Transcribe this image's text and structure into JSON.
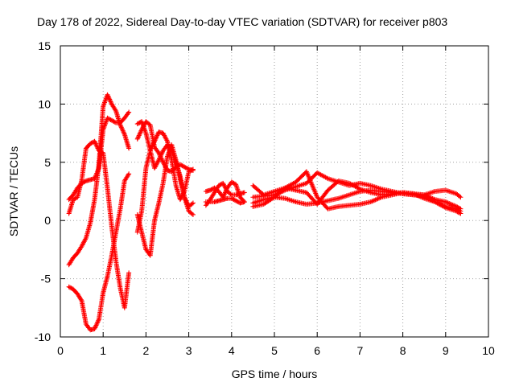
{
  "chart_data": {
    "type": "scatter",
    "title": "Day 178 of 2022, Sidereal Day-to-day VTEC variation (SDTVAR) for receiver p803",
    "xlabel": "GPS time / hours",
    "ylabel": "SDTVAR / TECUs",
    "xlim": [
      0,
      10
    ],
    "ylim": [
      -10,
      15
    ],
    "x_ticks": [
      0,
      1,
      2,
      3,
      4,
      5,
      6,
      7,
      8,
      9,
      10
    ],
    "y_ticks": [
      -10,
      -5,
      0,
      5,
      10,
      15
    ],
    "x_tick_labels": [
      "0",
      "1",
      "2",
      "3",
      "4",
      "5",
      "6",
      "7",
      "8",
      "9",
      "10"
    ],
    "y_tick_labels": [
      "-10",
      "-5",
      "0",
      "5",
      "10",
      "15"
    ],
    "grid": true,
    "marker": "+",
    "color": "#ff0000",
    "series": [
      {
        "name": "s1",
        "x": [
          0.2,
          0.3,
          0.4,
          0.5,
          0.6,
          0.7,
          0.8,
          0.9,
          1.0,
          1.1,
          1.2,
          1.3,
          1.4,
          1.5,
          1.6
        ],
        "y": [
          1.8,
          2.2,
          2.8,
          3.2,
          3.4,
          3.5,
          3.6,
          4.5,
          7.8,
          8.8,
          8.6,
          8.4,
          8.4,
          8.8,
          9.3
        ]
      },
      {
        "name": "s2",
        "x": [
          0.2,
          0.3,
          0.4,
          0.5,
          0.6,
          0.7,
          0.8,
          0.9,
          1.0,
          1.1,
          1.2,
          1.3,
          1.4,
          1.5,
          1.6
        ],
        "y": [
          -3.8,
          -3.2,
          -2.8,
          -2.2,
          -1.5,
          -0.2,
          1.8,
          4.8,
          9.8,
          10.8,
          10.0,
          9.4,
          8.2,
          7.4,
          6.2
        ]
      },
      {
        "name": "s3",
        "x": [
          0.2,
          0.3,
          0.4,
          0.5,
          0.6,
          0.7,
          0.8,
          0.9,
          1.0,
          1.1,
          1.2,
          1.3,
          1.4,
          1.5,
          1.6
        ],
        "y": [
          -5.7,
          -5.9,
          -6.3,
          -6.9,
          -8.9,
          -9.4,
          -9.3,
          -8.5,
          -6.2,
          -4.8,
          -3.0,
          -1.0,
          1.0,
          3.4,
          4.0
        ]
      },
      {
        "name": "s4",
        "x": [
          0.2,
          0.3,
          0.4,
          0.5,
          0.6,
          0.7,
          0.8,
          0.9,
          1.0,
          1.1,
          1.2,
          1.3,
          1.4,
          1.5,
          1.6
        ],
        "y": [
          0.6,
          1.8,
          2.0,
          3.5,
          6.2,
          6.6,
          6.8,
          6.0,
          5.8,
          2.8,
          -0.5,
          -3.5,
          -5.8,
          -7.5,
          -4.5
        ]
      },
      {
        "name": "s5",
        "x": [
          1.8,
          1.9,
          2.0,
          2.1,
          2.2,
          2.3,
          2.4,
          2.5,
          2.6,
          2.7,
          2.8,
          2.9,
          3.0,
          3.1
        ],
        "y": [
          -1.0,
          0.8,
          4.5,
          6.0,
          6.8,
          7.6,
          7.5,
          6.8,
          5.2,
          3.0,
          1.8,
          2.5,
          4.2,
          4.4
        ]
      },
      {
        "name": "s6",
        "x": [
          1.8,
          1.9,
          2.0,
          2.1,
          2.2,
          2.3,
          2.4,
          2.5,
          2.6,
          2.7,
          2.8,
          2.9,
          3.0,
          3.1
        ],
        "y": [
          7.0,
          7.8,
          8.5,
          8.2,
          6.3,
          5.8,
          5.0,
          4.3,
          4.2,
          4.6,
          4.8,
          4.6,
          4.4,
          4.3
        ]
      },
      {
        "name": "s7",
        "x": [
          1.8,
          1.9,
          2.0,
          2.1,
          2.2,
          2.3,
          2.4,
          2.5,
          2.6,
          2.7,
          2.8,
          2.9,
          3.0,
          3.1
        ],
        "y": [
          8.3,
          8.5,
          7.5,
          6.0,
          4.5,
          5.2,
          6.0,
          6.5,
          6.0,
          5.0,
          3.8,
          2.0,
          1.2,
          1.5
        ]
      },
      {
        "name": "s8",
        "x": [
          1.8,
          1.9,
          2.0,
          2.1,
          2.2,
          2.3,
          2.4,
          2.5,
          2.6,
          2.7,
          2.8,
          2.9,
          3.0,
          3.1
        ],
        "y": [
          0.5,
          -1.0,
          -2.5,
          -3.0,
          0.0,
          1.5,
          3.2,
          5.5,
          6.5,
          5.2,
          3.5,
          2.0,
          0.8,
          0.5
        ]
      },
      {
        "name": "s9",
        "x": [
          3.4,
          3.5,
          3.6,
          3.7,
          3.8,
          3.9,
          4.0,
          4.1,
          4.2,
          4.3
        ],
        "y": [
          2.5,
          2.6,
          2.8,
          2.5,
          2.0,
          2.8,
          3.3,
          3.1,
          2.0,
          1.6
        ]
      },
      {
        "name": "s10",
        "x": [
          3.4,
          3.5,
          3.6,
          3.7,
          3.8,
          3.9,
          4.0,
          4.1,
          4.2,
          4.3
        ],
        "y": [
          1.6,
          1.6,
          1.6,
          1.7,
          1.8,
          1.9,
          1.9,
          1.7,
          1.5,
          1.6
        ]
      },
      {
        "name": "s11",
        "x": [
          3.4,
          3.5,
          3.6,
          3.7,
          3.8,
          3.9,
          4.0,
          4.1,
          4.2,
          4.3
        ],
        "y": [
          1.3,
          1.8,
          2.4,
          3.0,
          3.2,
          2.5,
          2.2,
          2.2,
          2.3,
          2.4
        ]
      },
      {
        "name": "s12",
        "x": [
          4.5,
          4.75,
          5.0,
          5.25,
          5.5,
          5.75,
          6.0,
          6.25,
          6.5,
          6.75,
          7.0,
          7.25,
          7.5,
          7.75,
          8.0,
          8.25,
          8.5,
          8.75,
          9.0,
          9.25,
          9.35
        ],
        "y": [
          3.0,
          2.2,
          2.5,
          2.8,
          2.6,
          2.4,
          1.4,
          2.6,
          3.4,
          3.2,
          2.7,
          2.4,
          2.2,
          2.3,
          2.4,
          2.3,
          2.2,
          1.8,
          1.6,
          1.2,
          1.0
        ]
      },
      {
        "name": "s13",
        "x": [
          4.5,
          4.75,
          5.0,
          5.25,
          5.5,
          5.75,
          6.0,
          6.25,
          6.5,
          6.75,
          7.0,
          7.25,
          7.5,
          7.75,
          8.0,
          8.25,
          8.5,
          8.75,
          9.0,
          9.25,
          9.35
        ],
        "y": [
          1.5,
          1.8,
          2.0,
          1.9,
          1.6,
          1.4,
          1.5,
          1.7,
          1.9,
          2.2,
          2.5,
          2.6,
          2.5,
          2.4,
          2.3,
          2.2,
          2.1,
          1.6,
          1.1,
          0.8,
          0.6
        ]
      },
      {
        "name": "s14",
        "x": [
          4.5,
          4.75,
          5.0,
          5.25,
          5.5,
          5.75,
          6.0,
          6.25,
          6.5,
          6.75,
          7.0,
          7.25,
          7.5,
          7.75,
          8.0,
          8.25,
          8.5,
          8.75,
          9.0,
          9.25,
          9.35
        ],
        "y": [
          2.0,
          2.1,
          2.2,
          2.6,
          2.9,
          3.2,
          4.1,
          3.6,
          3.3,
          3.0,
          3.2,
          3.0,
          2.7,
          2.5,
          2.3,
          2.2,
          2.2,
          2.5,
          2.6,
          2.3,
          2.0
        ]
      },
      {
        "name": "s15",
        "x": [
          4.5,
          4.75,
          5.0,
          5.25,
          5.5,
          5.75,
          6.0,
          6.25,
          6.5,
          6.75,
          7.0,
          7.25,
          7.5,
          7.75,
          8.0,
          8.25,
          8.5,
          8.75,
          9.0,
          9.25,
          9.35
        ],
        "y": [
          1.2,
          1.4,
          2.0,
          2.8,
          3.3,
          4.2,
          2.0,
          1.0,
          1.2,
          1.3,
          1.4,
          1.6,
          2.0,
          2.2,
          2.4,
          2.3,
          1.9,
          1.6,
          1.2,
          1.0,
          0.8
        ]
      }
    ]
  }
}
